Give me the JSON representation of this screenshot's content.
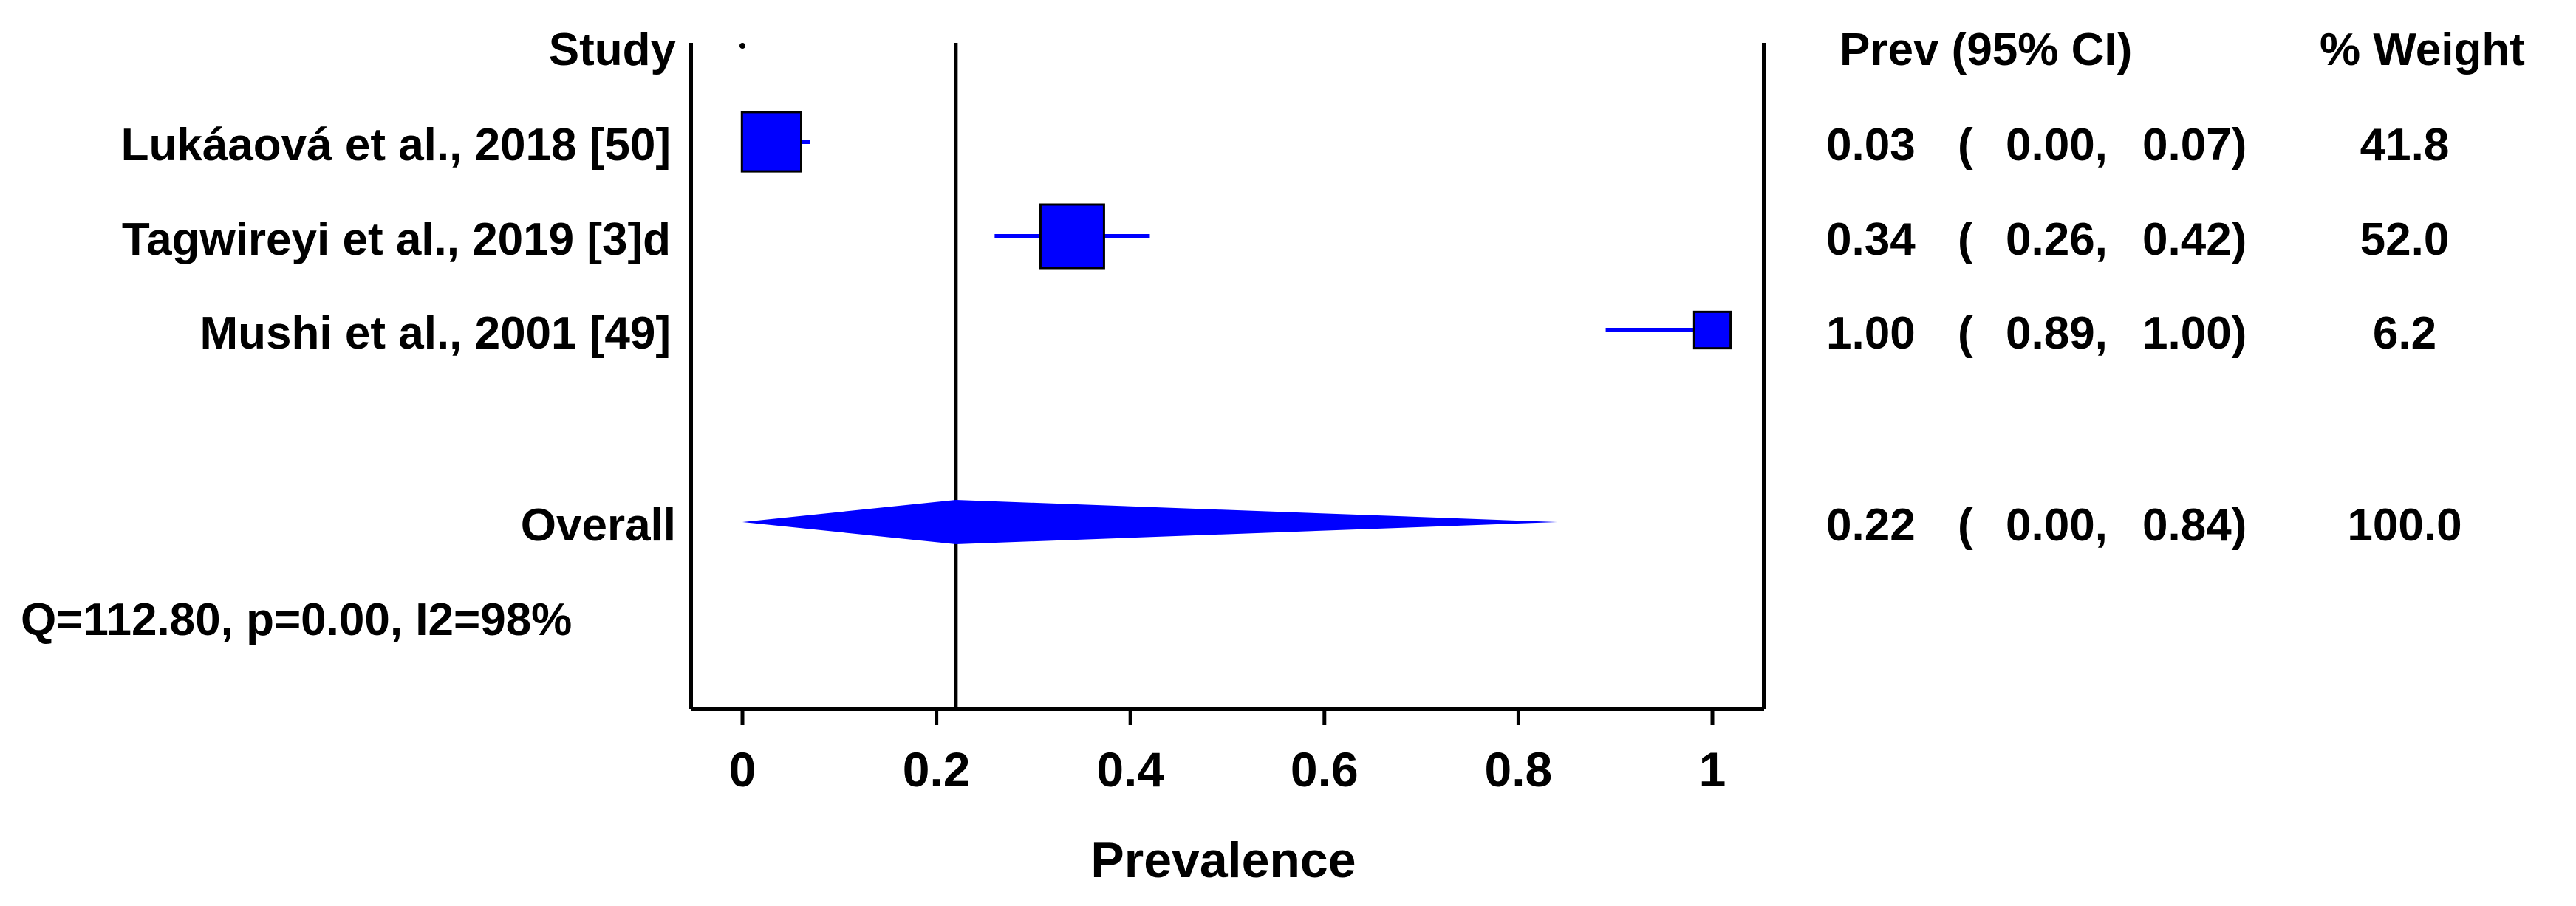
{
  "chart_data": {
    "type": "forest",
    "xlabel": "Prevalence",
    "xlim": [
      -0.05,
      1.05
    ],
    "xticks": [
      0,
      0.2,
      0.4,
      0.6,
      0.8,
      1
    ],
    "xtick_labels": [
      "0",
      "0.2",
      "0.4",
      "0.6",
      "0.8",
      "1"
    ],
    "reference_line": 0.22,
    "headers": {
      "study": "Study",
      "prev_ci": "Prev (95% CI)",
      "weight": "% Weight"
    },
    "studies": [
      {
        "label": "Lukáaová et al., 2018 [50]",
        "est": 0.03,
        "lo": 0.0,
        "hi": 0.07,
        "weight": 41.8,
        "est_text": "0.03",
        "lo_text": "0.00,",
        "hi_text": "0.07)",
        "weight_text": "41.8"
      },
      {
        "label": "Tagwireyi et al., 2019 [3]d",
        "est": 0.34,
        "lo": 0.26,
        "hi": 0.42,
        "weight": 52.0,
        "est_text": "0.34",
        "lo_text": "0.26,",
        "hi_text": "0.42)",
        "weight_text": "52.0"
      },
      {
        "label": "Mushi et al., 2001 [49]",
        "est": 1.0,
        "lo": 0.89,
        "hi": 1.0,
        "weight": 6.2,
        "est_text": "1.00",
        "lo_text": "0.89,",
        "hi_text": "1.00)",
        "weight_text": "6.2"
      }
    ],
    "overall": {
      "label": "Overall",
      "est": 0.22,
      "lo": 0.0,
      "hi": 0.84,
      "weight": 100.0,
      "est_text": "0.22",
      "lo_text": "0.00,",
      "hi_text": "0.84)",
      "weight_text": "100.0"
    },
    "open_paren": "(",
    "heterogeneity": "Q=112.80, p=0.00, I2=98%",
    "colors": {
      "marker": "#0000ff",
      "axis": "#000000",
      "text": "#000000"
    }
  }
}
